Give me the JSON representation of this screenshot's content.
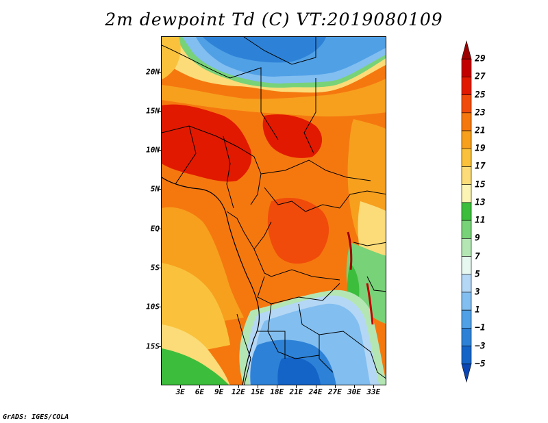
{
  "title": "2m dewpoint Td (C) VT:2019080109",
  "footer": "GrADS: IGES/COLA",
  "map": {
    "lat_labels": [
      {
        "text": "20N",
        "lat": 20
      },
      {
        "text": "15N",
        "lat": 15
      },
      {
        "text": "10N",
        "lat": 10
      },
      {
        "text": "5N",
        "lat": 5
      },
      {
        "text": "EQ",
        "lat": 0
      },
      {
        "text": "5S",
        "lat": -5
      },
      {
        "text": "10S",
        "lat": -10
      },
      {
        "text": "15S",
        "lat": -15
      }
    ],
    "lon_labels": [
      {
        "text": "3E",
        "lon": 3
      },
      {
        "text": "6E",
        "lon": 6
      },
      {
        "text": "9E",
        "lon": 9
      },
      {
        "text": "12E",
        "lon": 12
      },
      {
        "text": "15E",
        "lon": 15
      },
      {
        "text": "18E",
        "lon": 18
      },
      {
        "text": "21E",
        "lon": 21
      },
      {
        "text": "24E",
        "lon": 24
      },
      {
        "text": "27E",
        "lon": 27
      },
      {
        "text": "30E",
        "lon": 30
      },
      {
        "text": "33E",
        "lon": 33
      }
    ],
    "lon_range": [
      0,
      35
    ],
    "lat_range": [
      -20,
      24.5
    ]
  },
  "colorbar": {
    "levels": [
      "29",
      "27",
      "25",
      "23",
      "21",
      "19",
      "17",
      "15",
      "13",
      "11",
      "9",
      "7",
      "5",
      "3",
      "1",
      "−1",
      "−3",
      "−5"
    ],
    "colors": [
      "#9e0000",
      "#c30000",
      "#e11900",
      "#f04b0a",
      "#f5780f",
      "#f7a01e",
      "#fac23c",
      "#fbdc78",
      "#fcf4b4",
      "#3cbe3c",
      "#78d278",
      "#b4e6b4",
      "#e6f8f0",
      "#b4d7f5",
      "#82bef0",
      "#50a0e6",
      "#2d82d7",
      "#1464c8",
      "#0a46b4"
    ]
  }
}
